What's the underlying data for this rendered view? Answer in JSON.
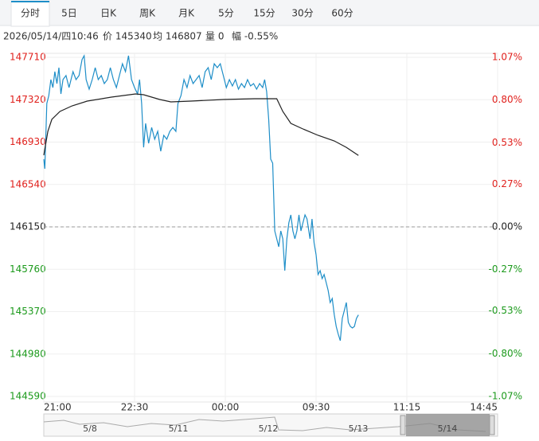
{
  "tabs": [
    "分时",
    "5日",
    "日K",
    "周K",
    "月K",
    "5分",
    "15分",
    "30分",
    "60分"
  ],
  "active_tab": 0,
  "info": [
    "2026/05/14/四10:46",
    "价 145340",
    "均 146807",
    "量 0",
    "幅 -0.55%"
  ],
  "chart_data": {
    "type": "line",
    "baseline": 146150,
    "ylim": [
      144590,
      147710
    ],
    "yticks": [
      147710,
      147320,
      146930,
      146540,
      146150,
      145760,
      145370,
      144980,
      144590
    ],
    "y2lim": [
      -1.07,
      1.07
    ],
    "y2ticks": [
      {
        "value": 1.07,
        "label": "1.07%"
      },
      {
        "value": 0.8,
        "label": "0.80%"
      },
      {
        "value": 0.53,
        "label": "0.53%"
      },
      {
        "value": 0.27,
        "label": "0.27%"
      },
      {
        "value": 0,
        "label": "0.00%"
      },
      {
        "value": -0.27,
        "label": "-0.27%"
      },
      {
        "value": -0.53,
        "label": "-0.53%"
      },
      {
        "value": -0.8,
        "label": "-0.80%"
      },
      {
        "value": -1.07,
        "label": "-1.07%"
      }
    ],
    "xlim": [
      0,
      450
    ],
    "xticks": [
      {
        "value": 0,
        "label": "21:00"
      },
      {
        "value": 90,
        "label": "22:30"
      },
      {
        "value": 180,
        "label": "00:00"
      },
      {
        "value": 270,
        "label": "09:30"
      },
      {
        "value": 360,
        "label": "11:15"
      },
      {
        "value": 450,
        "label": "14:45"
      }
    ],
    "grid": true,
    "series": [
      {
        "color": "#1e8ec8",
        "x": [
          0,
          1,
          3,
          5,
          7,
          9,
          11,
          13,
          15,
          17,
          19,
          22,
          25,
          29,
          32,
          35,
          38,
          40,
          42,
          45,
          48,
          51,
          54,
          57,
          60,
          63,
          66,
          69,
          72,
          75,
          78,
          81,
          84,
          87,
          90,
          93,
          95,
          97,
          99,
          101,
          104,
          107,
          110,
          113,
          116,
          119,
          122,
          125,
          128,
          131,
          133,
          136,
          139,
          142,
          145,
          148,
          151,
          154,
          157,
          160,
          163,
          166,
          169,
          172,
          175,
          178,
          181,
          184,
          187,
          190,
          193,
          196,
          199,
          202,
          205,
          208,
          211,
          214,
          217,
          219,
          221,
          223,
          225,
          227,
          229,
          231,
          233,
          235,
          237,
          239,
          241,
          243,
          245,
          247,
          249,
          251,
          253,
          255,
          257,
          259,
          261,
          264,
          266,
          268,
          270,
          272,
          274,
          276,
          278,
          280,
          282,
          284,
          286,
          288,
          290,
          292,
          294,
          296,
          298,
          300,
          302,
          304,
          306,
          308,
          310,
          312
        ],
        "values": [
          146773,
          146685,
          147285,
          147358,
          147505,
          147432,
          147578,
          147468,
          147615,
          147373,
          147505,
          147542,
          147432,
          147578,
          147505,
          147542,
          147690,
          147725,
          147505,
          147417,
          147505,
          147615,
          147505,
          147542,
          147468,
          147505,
          147615,
          147505,
          147432,
          147542,
          147651,
          147578,
          147725,
          147505,
          147432,
          147373,
          147505,
          147285,
          146882,
          147102,
          146919,
          147065,
          146956,
          147029,
          146846,
          146992,
          146956,
          147029,
          147065,
          147029,
          147285,
          147358,
          147505,
          147432,
          147542,
          147468,
          147505,
          147542,
          147432,
          147578,
          147615,
          147505,
          147651,
          147615,
          147651,
          147542,
          147432,
          147505,
          147446,
          147505,
          147417,
          147468,
          147432,
          147505,
          147446,
          147468,
          147417,
          147468,
          147432,
          147505,
          147395,
          147139,
          146773,
          146736,
          146113,
          146040,
          145967,
          146113,
          146040,
          145747,
          146040,
          146187,
          146260,
          146113,
          146040,
          146113,
          146260,
          146113,
          146187,
          146260,
          146223,
          146040,
          146223,
          146003,
          145894,
          145711,
          145747,
          145674,
          145711,
          145637,
          145564,
          145454,
          145491,
          145344,
          145234,
          145161,
          145103,
          145308,
          145381,
          145454,
          145271,
          145234,
          145220,
          145234,
          145308,
          145340
        ]
      },
      {
        "color": "#222222",
        "x": [
          0,
          4,
          8,
          16,
          28,
          43,
          67,
          91,
          99,
          115,
          126,
          146,
          178,
          209,
          231,
          237,
          245,
          257,
          272,
          288,
          300,
          312
        ],
        "values": [
          146809,
          147029,
          147139,
          147212,
          147263,
          147307,
          147344,
          147373,
          147366,
          147322,
          147300,
          147307,
          147322,
          147329,
          147329,
          147212,
          147102,
          147051,
          146992,
          146941,
          146882,
          146807
        ]
      }
    ]
  },
  "navigator": {
    "labels": [
      "5/8",
      "5/11",
      "5/12",
      "5/13",
      "5/14"
    ]
  }
}
